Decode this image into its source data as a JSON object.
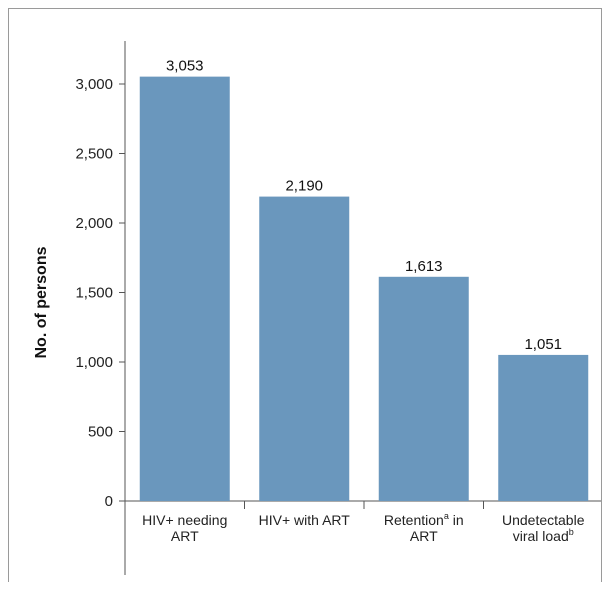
{
  "chart_data": {
    "type": "bar",
    "title": "",
    "xlabel": "",
    "ylabel": "No. of persons",
    "ylim": [
      0,
      3000
    ],
    "yticks": [
      0,
      500,
      1000,
      1500,
      2000,
      2500,
      3000
    ],
    "ytick_labels": [
      "0",
      "500",
      "1,000",
      "1,500",
      "2,000",
      "2,500",
      "3,000"
    ],
    "categories": [
      [
        "HIV+ needing",
        "ART"
      ],
      [
        "HIV+ with ART"
      ],
      [
        "Retention",
        "a",
        " in",
        "ART"
      ],
      [
        "Undetectable",
        "viral load",
        "b"
      ]
    ],
    "values": [
      3053,
      2190,
      1613,
      1051
    ],
    "value_labels": [
      "3,053",
      "2,190",
      "1,613",
      "1,051"
    ],
    "bar_color": "#6a97bd",
    "grid": false
  }
}
